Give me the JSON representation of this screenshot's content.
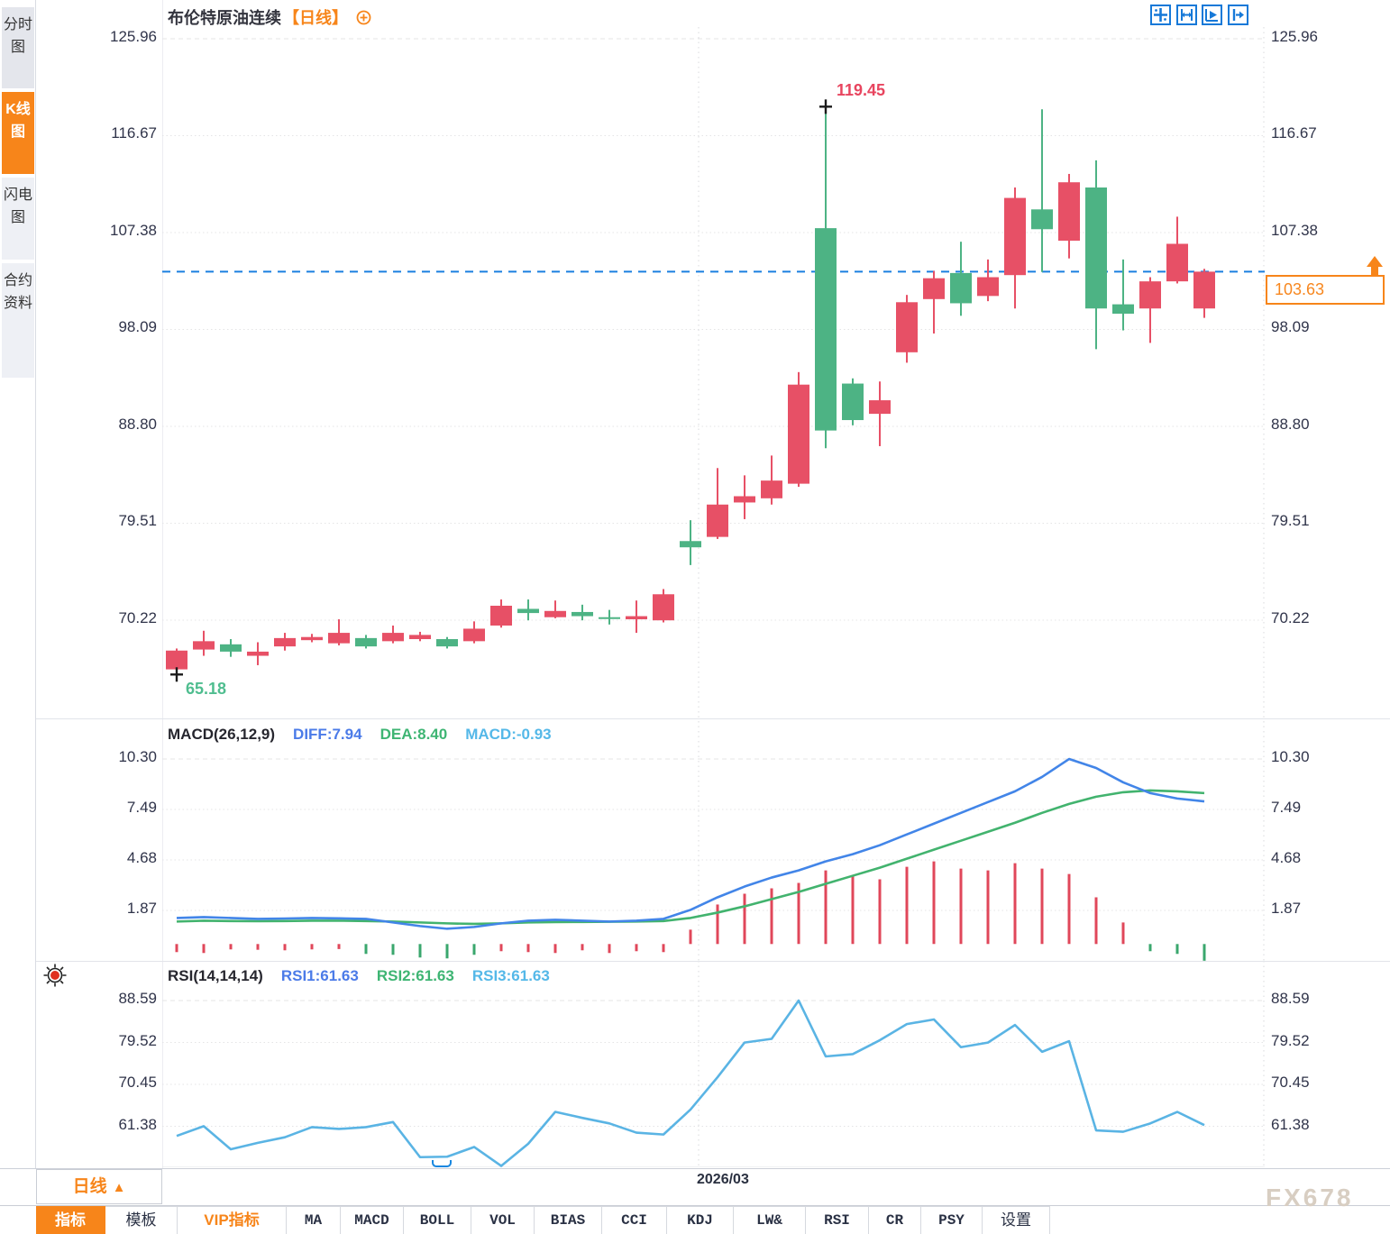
{
  "title": {
    "symbol": "布伦特原油连续",
    "period_tag": "【日线】",
    "add_icon": "circle-plus-icon"
  },
  "sidebar": {
    "tabs": [
      {
        "label": "分时图",
        "active": false
      },
      {
        "label": "K线图",
        "active": true
      },
      {
        "label": "闪电图",
        "active": false
      },
      {
        "label": "合约资料",
        "active": false
      }
    ]
  },
  "header_icons": [
    "crosshair-move-icon",
    "axis-fit-icon",
    "play-to-line-icon",
    "jump-to-latest-icon"
  ],
  "price_axis": {
    "labels": [
      "125.96",
      "116.67",
      "107.38",
      "98.09",
      "88.80",
      "79.51",
      "70.22"
    ]
  },
  "macd_panel": {
    "title": "MACD(26,12,9)",
    "diff_label": "DIFF:7.94",
    "dea_label": "DEA:8.40",
    "macd_label": "MACD:-0.93",
    "axis_labels": [
      "10.30",
      "7.49",
      "4.68",
      "1.87"
    ]
  },
  "rsi_panel": {
    "title": "RSI(14,14,14)",
    "rsi1_label": "RSI1:61.63",
    "rsi2_label": "RSI2:61.63",
    "rsi3_label": "RSI3:61.63",
    "axis_labels": [
      "88.59",
      "79.52",
      "70.45",
      "61.38"
    ]
  },
  "annotations": {
    "high_label": "119.45",
    "low_label": "65.18",
    "last_price": "103.63",
    "date_label": "2026/03",
    "last_price_marker": "orange-up-arrow-icon"
  },
  "bottom": {
    "period_button": "日线",
    "period_arrow": "▲",
    "tabs": [
      {
        "label": "指标",
        "style": "active"
      },
      {
        "label": "模板",
        "style": "normal"
      },
      {
        "label": "VIP指标",
        "style": "vip"
      },
      {
        "label": "MA",
        "style": "latin"
      },
      {
        "label": "MACD",
        "style": "latin"
      },
      {
        "label": "BOLL",
        "style": "latin"
      },
      {
        "label": "VOL",
        "style": "latin"
      },
      {
        "label": "BIAS",
        "style": "latin"
      },
      {
        "label": "CCI",
        "style": "latin"
      },
      {
        "label": "KDJ",
        "style": "latin"
      },
      {
        "label": "LW&",
        "style": "latin"
      },
      {
        "label": "RSI",
        "style": "latin"
      },
      {
        "label": "CR",
        "style": "latin"
      },
      {
        "label": "PSY",
        "style": "latin"
      },
      {
        "label": "设置",
        "style": "normal"
      }
    ]
  },
  "watermark": "FX678",
  "colors": {
    "up_candle": "#e75066",
    "down_candle": "#4db384",
    "accent_orange": "#f7851a",
    "last_price_line": "#1a7fe0",
    "diff_line": "#4285e8",
    "dea_line": "#42b36e",
    "rsi_line": "#5ab4e4",
    "hist_red": "#e0475a",
    "hist_green": "#3aa76d",
    "axis_text": "#30344a",
    "sun_icon_red": "#e03020"
  },
  "chart_data": {
    "type": "candlestick+indicators",
    "symbol": "布伦特原油连续",
    "period": "日线",
    "y_axis_ticks": [
      125.96,
      116.67,
      107.38,
      98.09,
      88.8,
      79.51,
      70.22
    ],
    "marked_high": 119.45,
    "marked_low": 65.18,
    "last_close": 103.63,
    "candles_ohlc": [
      [
        65.5,
        67.5,
        65.18,
        67.3
      ],
      [
        67.4,
        69.2,
        66.8,
        68.2
      ],
      [
        67.9,
        68.4,
        66.7,
        67.2
      ],
      [
        66.8,
        68.1,
        65.9,
        67.2
      ],
      [
        67.7,
        69.0,
        67.3,
        68.5
      ],
      [
        68.3,
        68.9,
        68.1,
        68.6
      ],
      [
        68.0,
        70.3,
        67.8,
        69.0
      ],
      [
        68.5,
        68.8,
        67.5,
        67.7
      ],
      [
        68.2,
        69.7,
        68.0,
        69.0
      ],
      [
        68.4,
        69.1,
        68.2,
        68.8
      ],
      [
        68.4,
        68.6,
        67.5,
        67.7
      ],
      [
        68.2,
        70.1,
        68.0,
        69.4
      ],
      [
        69.7,
        72.2,
        69.5,
        71.6
      ],
      [
        71.3,
        72.2,
        70.2,
        70.9
      ],
      [
        70.5,
        72.1,
        70.4,
        71.1
      ],
      [
        71.0,
        71.7,
        70.2,
        70.6
      ],
      [
        70.5,
        71.2,
        69.8,
        70.4
      ],
      [
        70.3,
        72.1,
        69.0,
        70.6
      ],
      [
        70.2,
        73.2,
        70.0,
        72.7
      ],
      [
        77.8,
        79.8,
        75.5,
        77.2
      ],
      [
        78.2,
        84.8,
        78.0,
        81.3
      ],
      [
        81.5,
        84.1,
        79.9,
        82.1
      ],
      [
        81.9,
        86.0,
        81.3,
        83.6
      ],
      [
        83.3,
        94.0,
        83.0,
        92.8
      ],
      [
        107.8,
        119.45,
        86.7,
        88.4
      ],
      [
        92.9,
        93.4,
        88.9,
        89.4
      ],
      [
        90.0,
        93.1,
        86.9,
        91.3
      ],
      [
        95.9,
        101.4,
        94.9,
        100.7
      ],
      [
        101.0,
        103.7,
        97.7,
        103.0
      ],
      [
        103.5,
        106.5,
        99.4,
        100.6
      ],
      [
        101.3,
        104.8,
        100.8,
        103.1
      ],
      [
        103.3,
        111.7,
        100.1,
        110.7
      ],
      [
        109.6,
        119.2,
        103.6,
        107.7
      ],
      [
        106.6,
        113.0,
        104.9,
        112.2
      ],
      [
        111.7,
        114.3,
        96.2,
        100.1
      ],
      [
        100.5,
        104.8,
        98.0,
        99.6
      ],
      [
        100.1,
        103.1,
        96.8,
        102.7
      ],
      [
        102.7,
        108.9,
        102.5,
        106.3
      ],
      [
        100.1,
        103.9,
        99.2,
        103.63
      ]
    ],
    "macd": {
      "params": [
        26,
        12,
        9
      ],
      "diff": 7.94,
      "dea": 8.4,
      "macd": -0.93,
      "ticks": [
        10.3,
        7.49,
        4.68,
        1.87
      ],
      "diff_series": [
        1.45,
        1.5,
        1.45,
        1.4,
        1.42,
        1.45,
        1.43,
        1.4,
        1.2,
        1.0,
        0.85,
        0.95,
        1.15,
        1.3,
        1.35,
        1.3,
        1.25,
        1.3,
        1.4,
        1.9,
        2.6,
        3.2,
        3.7,
        4.1,
        4.6,
        5.0,
        5.5,
        6.1,
        6.7,
        7.3,
        7.9,
        8.5,
        9.3,
        10.3,
        9.8,
        9.0,
        8.4,
        8.1,
        7.94
      ],
      "dea_series": [
        1.25,
        1.3,
        1.28,
        1.27,
        1.28,
        1.3,
        1.3,
        1.28,
        1.25,
        1.2,
        1.15,
        1.12,
        1.15,
        1.2,
        1.22,
        1.23,
        1.24,
        1.25,
        1.28,
        1.45,
        1.75,
        2.1,
        2.5,
        2.9,
        3.35,
        3.8,
        4.25,
        4.75,
        5.25,
        5.75,
        6.25,
        6.75,
        7.3,
        7.8,
        8.2,
        8.45,
        8.55,
        8.5,
        8.4
      ],
      "hist_series": [
        -0.45,
        -0.5,
        -0.3,
        -0.32,
        -0.35,
        -0.3,
        -0.28,
        -0.55,
        -0.6,
        -0.75,
        -0.8,
        -0.6,
        -0.4,
        -0.45,
        -0.5,
        -0.35,
        -0.5,
        -0.4,
        -0.45,
        0.8,
        2.2,
        2.8,
        3.1,
        3.4,
        4.1,
        3.8,
        3.6,
        4.3,
        4.6,
        4.2,
        4.1,
        4.5,
        4.2,
        3.9,
        2.6,
        1.2,
        -0.4,
        -0.55,
        -0.93
      ],
      "hist_colors": "rrrrrrrgggggrrrrrrrrrrrrrrrrrrrrrrrrggg"
    },
    "rsi": {
      "params": [
        14,
        14,
        14
      ],
      "rsi1": 61.63,
      "rsi2": 61.63,
      "rsi3": 61.63,
      "ticks": [
        88.59,
        79.52,
        70.45,
        61.38
      ],
      "series": [
        59.3,
        61.4,
        56.4,
        57.8,
        59.0,
        61.2,
        60.8,
        61.2,
        62.3,
        54.7,
        54.8,
        56.9,
        52.8,
        57.6,
        64.5,
        63.2,
        62.0,
        60.0,
        59.6,
        65.0,
        72.0,
        79.5,
        80.3,
        88.59,
        76.5,
        77.0,
        80.0,
        83.5,
        84.5,
        78.5,
        79.5,
        83.3,
        77.5,
        79.8,
        60.5,
        60.2,
        62.0,
        64.5,
        61.63
      ]
    },
    "x_axis_label": "2026/03"
  }
}
